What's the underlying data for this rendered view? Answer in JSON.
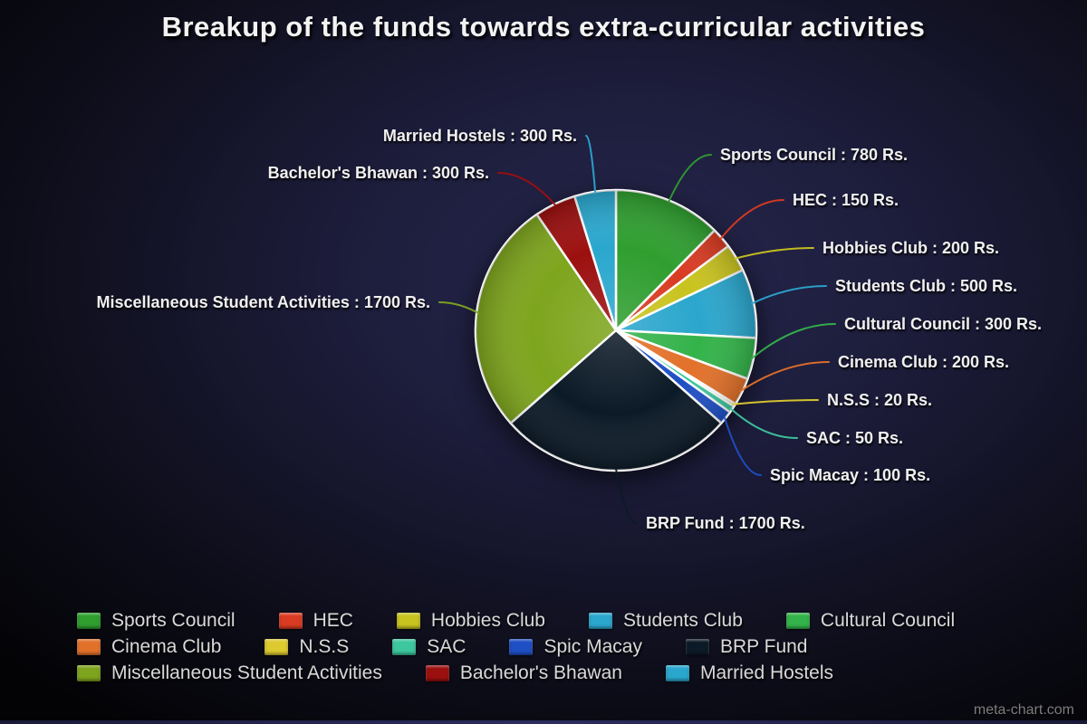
{
  "page": {
    "title": "Breakup of the funds towards extra-curricular activities",
    "watermark": "meta-chart.com"
  },
  "chart_data": {
    "type": "pie",
    "title": "Breakup of the funds towards extra-curricular activities",
    "unit": "Rs.",
    "legend_position": "bottom",
    "legend_rows": [
      [
        0,
        1,
        2,
        3,
        4
      ],
      [
        5,
        6,
        7,
        8,
        9
      ],
      [
        10,
        11,
        12
      ]
    ],
    "slices": [
      {
        "label": "Sports Council",
        "value": 780,
        "color": "#2f9e2f",
        "callout": "Sports Council : 780 Rs."
      },
      {
        "label": "HEC",
        "value": 150,
        "color": "#d93b22",
        "callout": "HEC : 150 Rs."
      },
      {
        "label": "Hobbies Club",
        "value": 200,
        "color": "#c9c31f",
        "callout": "Hobbies Club : 200 Rs."
      },
      {
        "label": "Students Club",
        "value": 500,
        "color": "#2ba6cd",
        "callout": "Students Club : 500 Rs."
      },
      {
        "label": "Cultural Council",
        "value": 300,
        "color": "#33b34a",
        "callout": "Cultural Council : 300 Rs."
      },
      {
        "label": "Cinema Club",
        "value": 200,
        "color": "#e2712a",
        "callout": "Cinema Club : 200 Rs."
      },
      {
        "label": "N.S.S",
        "value": 20,
        "color": "#ddca2e",
        "callout": "N.S.S : 20 Rs."
      },
      {
        "label": "SAC",
        "value": 50,
        "color": "#3cc79e",
        "callout": "SAC : 50 Rs."
      },
      {
        "label": "Spic Macay",
        "value": 100,
        "color": "#1f4fc4",
        "callout": "Spic Macay : 100 Rs."
      },
      {
        "label": "BRP Fund",
        "value": 1700,
        "color": "#0c1a27",
        "callout": "BRP Fund : 1700 Rs."
      },
      {
        "label": "Miscellaneous Student Activities",
        "value": 1700,
        "color": "#7ea51d",
        "callout": "Miscellaneous Student Activities : 1700 Rs."
      },
      {
        "label": "Bachelor's Bhawan",
        "value": 300,
        "color": "#9c0f0f",
        "callout": "Bachelor's Bhawan : 300 Rs."
      },
      {
        "label": "Married Hostels",
        "value": 300,
        "color": "#2aa7ce",
        "callout": "Married Hostels : 300 Rs."
      }
    ]
  }
}
